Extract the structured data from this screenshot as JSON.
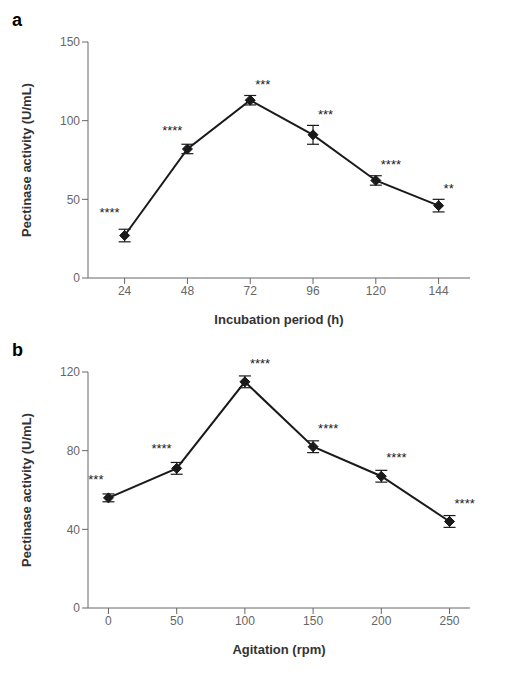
{
  "chart_data": [
    {
      "type": "line",
      "title": "a",
      "xlabel": "Incubation period (h)",
      "ylabel": "Pectinase activity (U/mL)",
      "x": [
        24,
        48,
        72,
        96,
        120,
        144
      ],
      "values": [
        27,
        82,
        113,
        91,
        62,
        46
      ],
      "yerr": [
        4,
        3,
        3,
        6,
        3,
        4
      ],
      "xlim": [
        10,
        156
      ],
      "xticks": [
        24,
        48,
        72,
        96,
        120,
        144
      ],
      "ylim": [
        0,
        150
      ],
      "yticks": [
        0,
        50,
        100,
        150
      ],
      "color": "#1a1a1a",
      "marker": "diamond",
      "line_style": "solid",
      "grid": false,
      "annotations": [
        {
          "x": 24,
          "y": 39,
          "text": "****"
        },
        {
          "x": 48,
          "y": 91,
          "text": "****"
        },
        {
          "x": 72,
          "y": 120,
          "text": "***"
        },
        {
          "x": 96,
          "y": 101,
          "text": "***"
        },
        {
          "x": 120,
          "y": 69,
          "text": "****"
        },
        {
          "x": 144,
          "y": 54,
          "text": "**"
        }
      ]
    },
    {
      "type": "line",
      "title": "b",
      "xlabel": "Agitation (rpm)",
      "ylabel": "Pectinase activity (U/mL)",
      "x": [
        0,
        50,
        100,
        150,
        200,
        250
      ],
      "values": [
        56,
        71,
        115,
        82,
        67,
        44
      ],
      "yerr": [
        2,
        3,
        3,
        3,
        3,
        3
      ],
      "xlim": [
        -15,
        265
      ],
      "xticks": [
        0,
        50,
        100,
        150,
        200,
        250
      ],
      "ylim": [
        0,
        120
      ],
      "yticks": [
        0,
        40,
        80,
        120
      ],
      "color": "#1a1a1a",
      "marker": "diamond",
      "line_style": "solid",
      "grid": false,
      "annotations": [
        {
          "x": 0,
          "y": 63,
          "text": "***"
        },
        {
          "x": 50,
          "y": 79,
          "text": "****"
        },
        {
          "x": 100,
          "y": 122,
          "text": "****"
        },
        {
          "x": 150,
          "y": 89,
          "text": "****"
        },
        {
          "x": 200,
          "y": 74,
          "text": "****"
        },
        {
          "x": 250,
          "y": 51,
          "text": "****"
        }
      ]
    }
  ]
}
